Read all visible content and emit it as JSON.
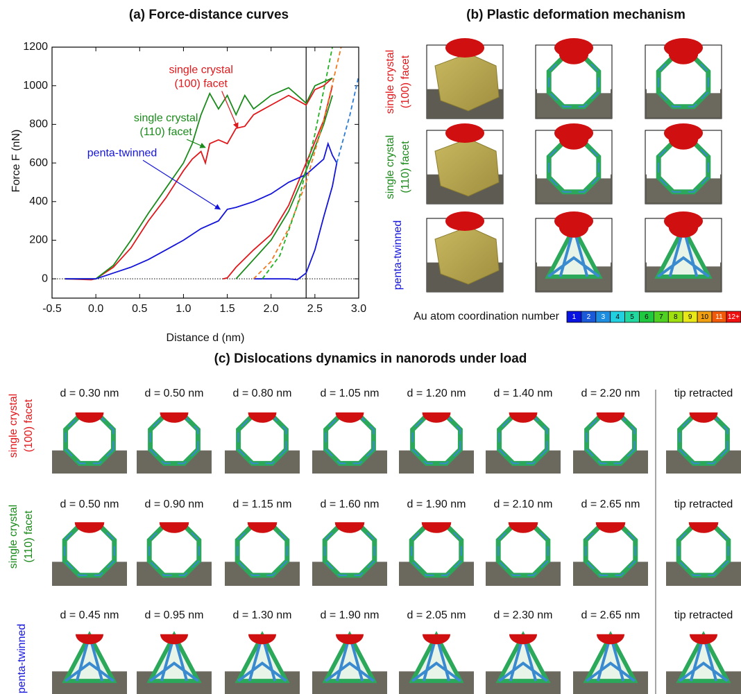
{
  "chart_data": {
    "type": "line",
    "title": "(a)  Force-distance curves",
    "xlabel": "Distance d (nm)",
    "ylabel": "Force F (nN)",
    "xlim": [
      -0.5,
      3.0
    ],
    "ylim": [
      -100,
      1200
    ],
    "xticks": [
      -0.5,
      {
        "value": 0,
        "label": "0.0"
      },
      0.5,
      {
        "value": 1,
        "label": "1.0"
      },
      1.5,
      {
        "value": 2,
        "label": "2.0"
      },
      2.5,
      {
        "value": 3,
        "label": "3.0"
      }
    ],
    "yticks": [
      0,
      200,
      400,
      600,
      800,
      1000,
      1200
    ],
    "vline": 2.4,
    "hline": 0,
    "series": [
      {
        "color": "#e0181b",
        "dash": false,
        "x": [
          -0.35,
          -0.05,
          0,
          0.2,
          0.4,
          0.6,
          0.8,
          1.0,
          1.1,
          1.2,
          1.25,
          1.3,
          1.4,
          1.5,
          1.6,
          1.7,
          1.8,
          2.0,
          2.2,
          2.4,
          2.5,
          2.6,
          2.7
        ],
        "values": [
          0,
          -5,
          0,
          60,
          160,
          300,
          420,
          560,
          620,
          660,
          600,
          700,
          720,
          700,
          780,
          790,
          850,
          900,
          950,
          900,
          980,
          1000,
          1040
        ]
      },
      {
        "color": "#e0181b",
        "dash": false,
        "x": [
          1.45,
          1.5,
          1.6,
          1.8,
          2.0,
          2.2,
          2.4,
          2.6,
          2.7
        ],
        "values": [
          0,
          5,
          60,
          150,
          230,
          380,
          600,
          820,
          1000
        ]
      },
      {
        "color": "#1a8a1a",
        "dash": false,
        "x": [
          -0.35,
          0,
          0.2,
          0.4,
          0.6,
          0.8,
          1.0,
          1.1,
          1.2,
          1.3,
          1.4,
          1.5,
          1.6,
          1.7,
          1.8,
          2.0,
          2.2,
          2.3,
          2.4,
          2.5,
          2.7
        ],
        "values": [
          0,
          0,
          70,
          200,
          340,
          470,
          600,
          700,
          850,
          960,
          880,
          950,
          850,
          950,
          880,
          950,
          990,
          950,
          910,
          1000,
          1040
        ]
      },
      {
        "color": "#1a8a1a",
        "dash": false,
        "x": [
          1.6,
          1.8,
          2.0,
          2.2,
          2.4,
          2.6,
          2.7
        ],
        "values": [
          0,
          100,
          200,
          350,
          560,
          800,
          950
        ]
      },
      {
        "color": "#1414d8",
        "dash": false,
        "x": [
          -0.35,
          0,
          0.2,
          0.4,
          0.6,
          0.8,
          1.0,
          1.2,
          1.4,
          1.5,
          1.6,
          1.8,
          2.0,
          2.2,
          2.4,
          2.5,
          2.6,
          2.65,
          2.7,
          2.75
        ],
        "values": [
          0,
          0,
          30,
          60,
          100,
          150,
          200,
          260,
          300,
          360,
          370,
          400,
          440,
          500,
          540,
          580,
          620,
          700,
          640,
          600
        ]
      },
      {
        "color": "#1414d8",
        "dash": false,
        "x": [
          1.8,
          2.0,
          2.2,
          2.3,
          2.4,
          2.5,
          2.6,
          2.7,
          2.75
        ],
        "values": [
          0,
          0,
          0,
          -5,
          30,
          150,
          320,
          480,
          600
        ]
      },
      {
        "color": "#f07820",
        "dash": true,
        "x": [
          1.8,
          2.0,
          2.2,
          2.4,
          2.6,
          2.8
        ],
        "values": [
          0,
          90,
          260,
          500,
          820,
          1200
        ]
      },
      {
        "color": "#22b022",
        "dash": true,
        "x": [
          1.9,
          2.1,
          2.3,
          2.5,
          2.7
        ],
        "values": [
          0,
          120,
          380,
          750,
          1200
        ]
      },
      {
        "color": "#2a7ad8",
        "dash": true,
        "x": [
          2.75,
          2.9,
          3.0
        ],
        "values": [
          600,
          850,
          1050
        ]
      }
    ],
    "annotations": [
      {
        "lines": [
          "single crystal",
          "(100) facet"
        ],
        "color": "#e0181b",
        "x": 1.2,
        "y": 1080,
        "ax": 1.62,
        "ay": 780
      },
      {
        "lines": [
          "single crystal",
          "(110) facet"
        ],
        "color": "#1a8a1a",
        "x": 0.8,
        "y": 830,
        "ax": 1.25,
        "ay": 680
      },
      {
        "lines": [
          "penta-twinned"
        ],
        "color": "#1414d8",
        "x": 0.3,
        "y": 650,
        "ax": 1.42,
        "ay": 360
      }
    ]
  },
  "panel_b": {
    "title": "(b)  Plastic deformation mechanism",
    "rows": [
      {
        "lines": [
          "single crystal",
          "(100) facet"
        ],
        "color": "#e0181b"
      },
      {
        "lines": [
          "single crystal",
          "(110) facet"
        ],
        "color": "#1a8a1a"
      },
      {
        "lines": [
          "penta-twinned"
        ],
        "color": "#1414d8"
      }
    ],
    "colorbar": {
      "label": "Au atom coordination number",
      "ticks": [
        "1",
        "2",
        "3",
        "4",
        "5",
        "6",
        "7",
        "8",
        "9",
        "10",
        "11",
        "12+"
      ],
      "colors": [
        "#0a14e0",
        "#1a5ad8",
        "#1e8ee0",
        "#22d0e0",
        "#20d8a0",
        "#20c840",
        "#50d020",
        "#a0e010",
        "#e8e818",
        "#f0a010",
        "#f05a08",
        "#f01010"
      ]
    }
  },
  "panel_c": {
    "title": "(c)  Dislocations dynamics in nanorods under load",
    "rows": [
      {
        "lines": [
          "single crystal",
          "(100) facet"
        ],
        "color": "#e0181b",
        "frames": [
          "d = 0.30 nm",
          "d = 0.50 nm",
          "d = 0.80 nm",
          "d = 1.05 nm",
          "d = 1.20 nm",
          "d = 1.40 nm",
          "d = 2.20 nm",
          "tip retracted"
        ]
      },
      {
        "lines": [
          "single crystal",
          "(110) facet"
        ],
        "color": "#1a8a1a",
        "frames": [
          "d = 0.50 nm",
          "d = 0.90 nm",
          "d = 1.15 nm",
          "d = 1.60 nm",
          "d = 1.90 nm",
          "d = 2.10 nm",
          "d = 2.65 nm",
          "tip retracted"
        ]
      },
      {
        "lines": [
          "penta-twinned"
        ],
        "color": "#1414d8",
        "frames": [
          "d = 0.45 nm",
          "d = 0.95 nm",
          "d = 1.30 nm",
          "d = 1.90 nm",
          "d = 2.05 nm",
          "d = 2.30 nm",
          "d = 2.65 nm",
          "tip retracted"
        ]
      }
    ]
  }
}
